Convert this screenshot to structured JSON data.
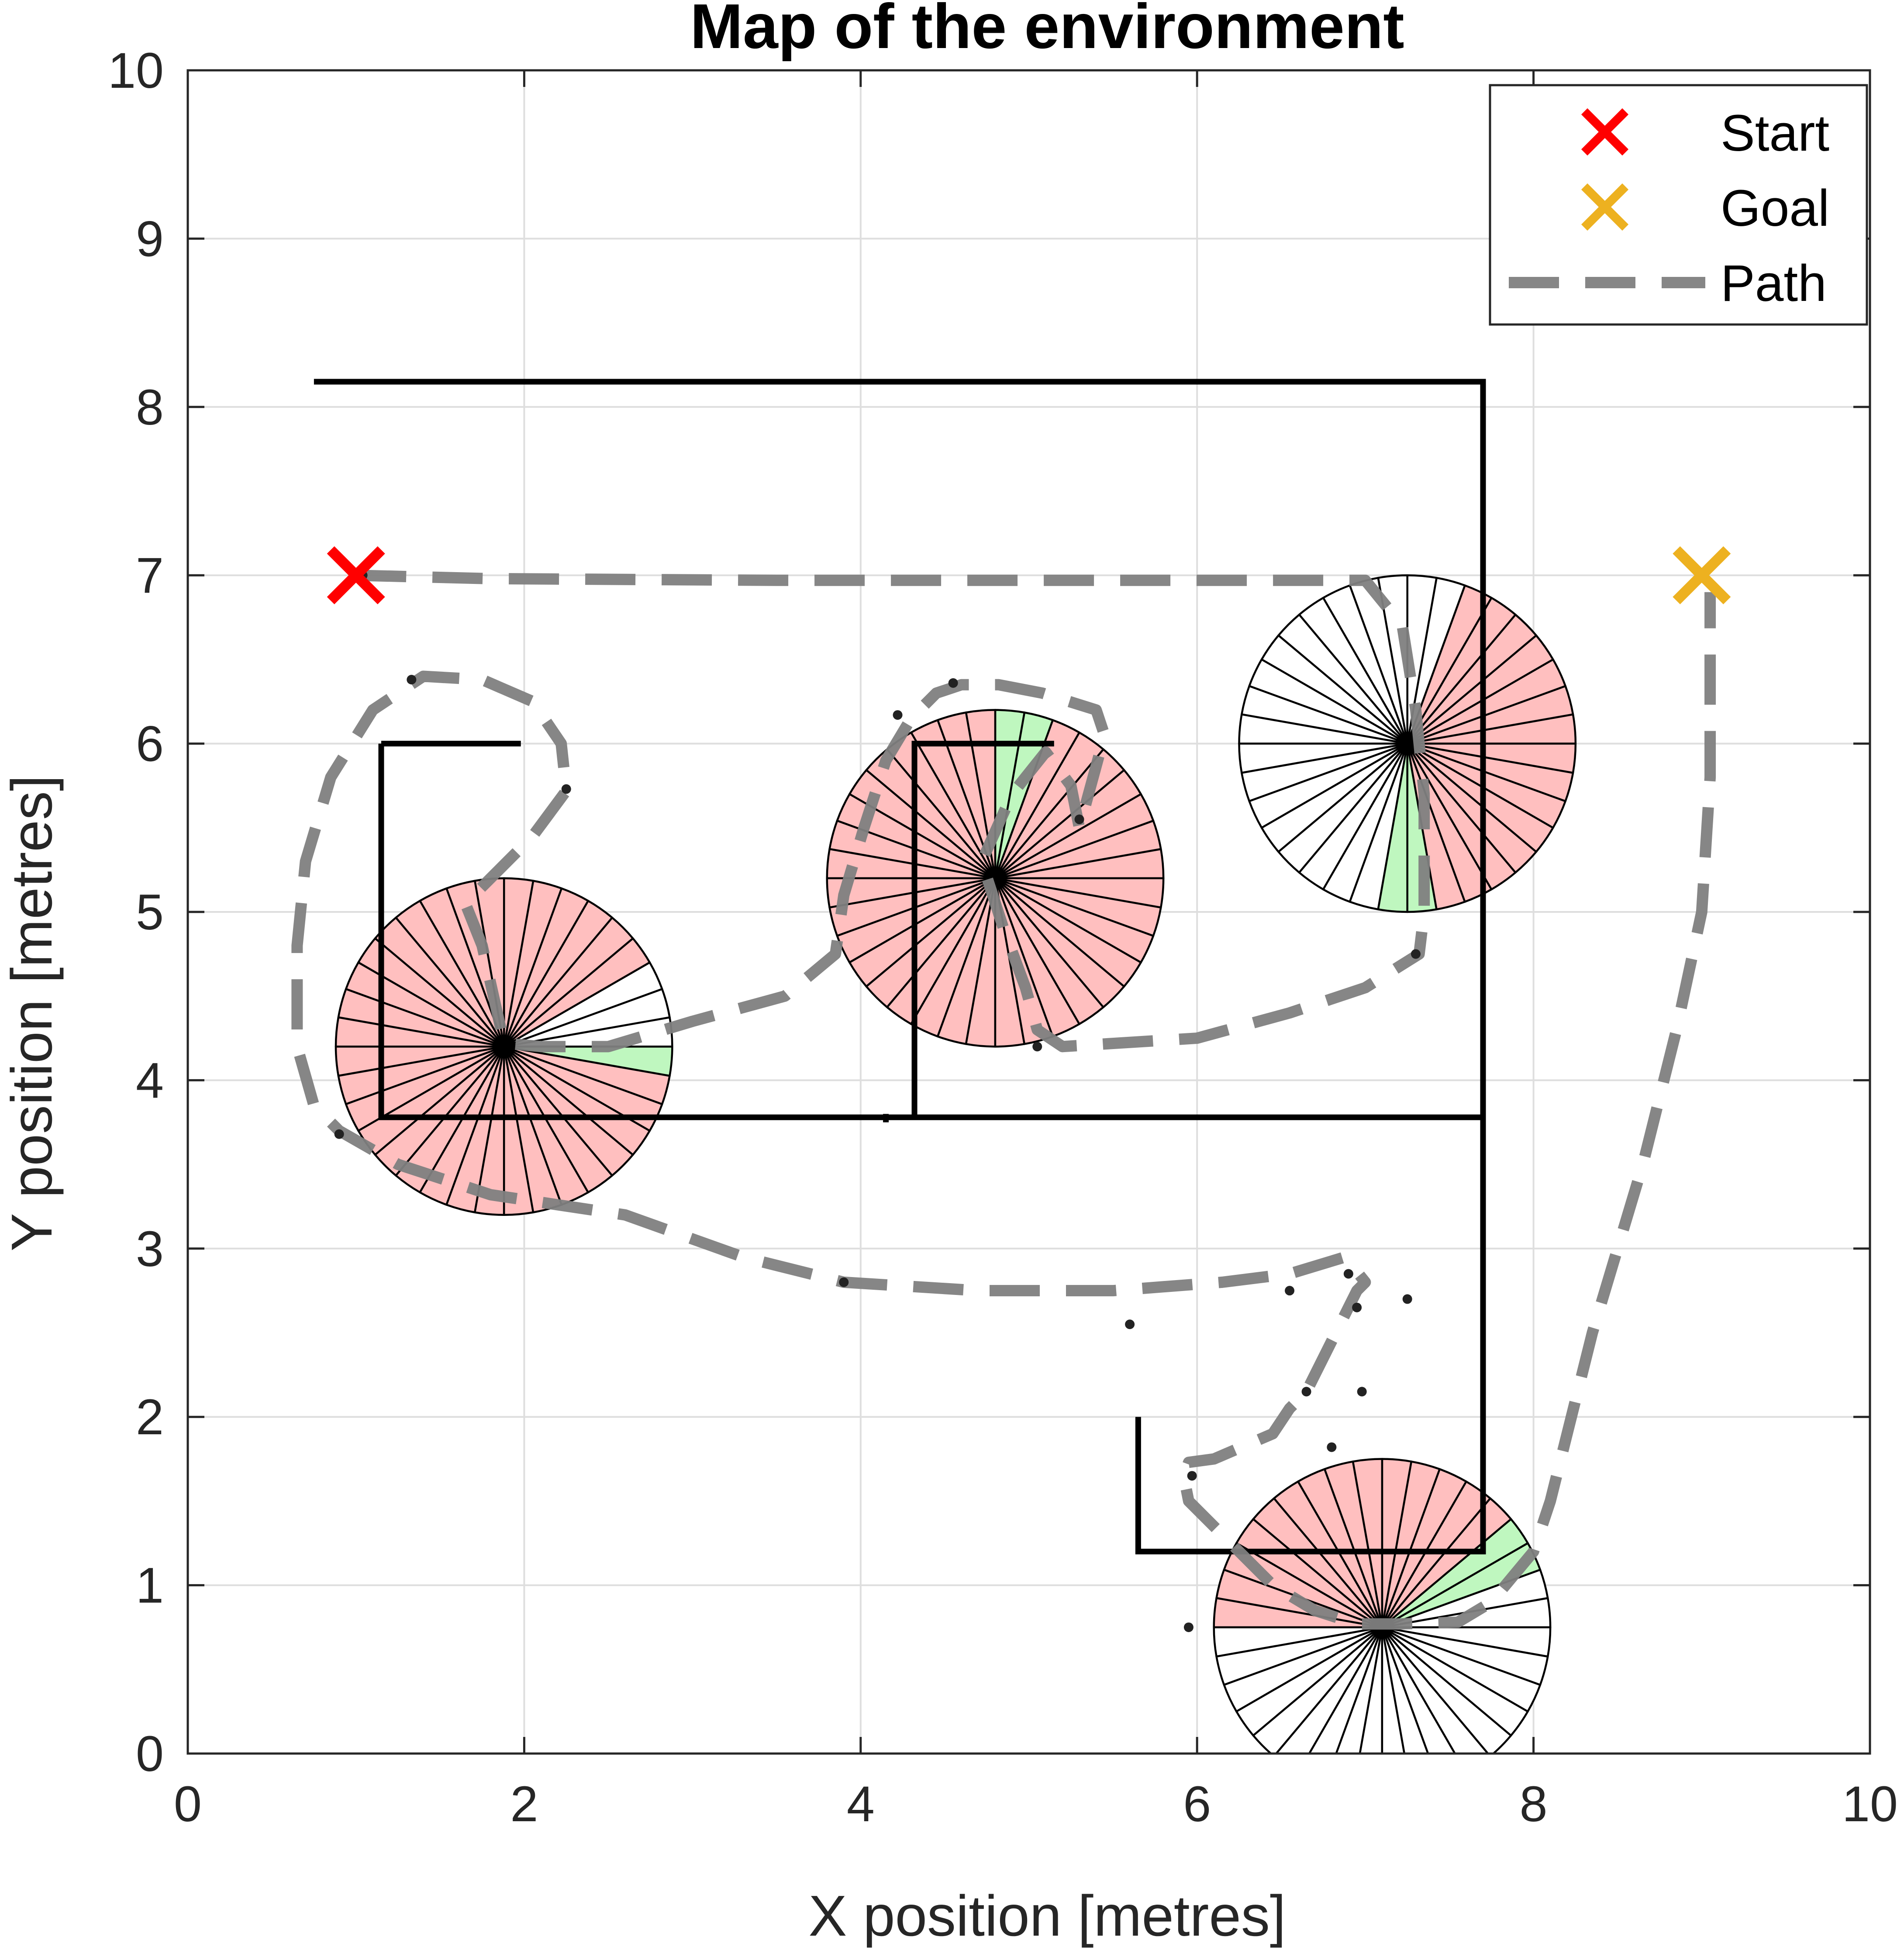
{
  "chart_data": {
    "type": "scatter",
    "title": "Map of the environment",
    "xlabel": "X position [metres]",
    "ylabel": "Y position [metres]",
    "xlim": [
      0,
      10
    ],
    "ylim": [
      0,
      10
    ],
    "xticks": [
      "0",
      "2",
      "4",
      "6",
      "8",
      "10"
    ],
    "yticks": [
      "0",
      "1",
      "2",
      "3",
      "4",
      "5",
      "6",
      "7",
      "8",
      "9",
      "10"
    ],
    "grid": true,
    "legend": {
      "placement": "top-right",
      "entries": [
        {
          "label": "Start",
          "marker": "x",
          "color": "#ff0000"
        },
        {
          "label": "Goal",
          "marker": "x",
          "color": "#edb120"
        },
        {
          "label": "Path",
          "marker": "dashed-line",
          "color": "#808080"
        }
      ]
    },
    "start": {
      "x": 1.0,
      "y": 7.0
    },
    "goal": {
      "x": 9.0,
      "y": 7.0
    },
    "walls": [
      [
        [
          0.75,
          8.15
        ],
        [
          7.7,
          8.15
        ],
        [
          7.7,
          1.2
        ],
        [
          5.65,
          1.2
        ],
        [
          5.65,
          2.0
        ]
      ],
      [
        [
          1.15,
          6.0
        ],
        [
          1.15,
          3.78
        ],
        [
          7.7,
          3.78
        ]
      ],
      [
        [
          1.15,
          6.0
        ],
        [
          1.98,
          6.0
        ]
      ],
      [
        [
          4.32,
          3.78
        ],
        [
          4.32,
          6.0
        ],
        [
          5.15,
          6.0
        ]
      ],
      [
        [
          4.15,
          3.75
        ],
        [
          4.15,
          3.8
        ]
      ]
    ],
    "path": [
      [
        1.0,
        7.0
      ],
      [
        1.8,
        6.98
      ],
      [
        3.5,
        6.97
      ],
      [
        5.5,
        6.97
      ],
      [
        7.0,
        6.97
      ],
      [
        7.22,
        6.7
      ],
      [
        7.3,
        6.2
      ],
      [
        7.35,
        5.7
      ],
      [
        7.35,
        5.0
      ],
      [
        7.32,
        4.75
      ],
      [
        7.0,
        4.55
      ],
      [
        6.55,
        4.4
      ],
      [
        6.0,
        4.25
      ],
      [
        5.2,
        4.2
      ],
      [
        5.05,
        4.3
      ],
      [
        4.98,
        4.55
      ],
      [
        4.85,
        4.9
      ],
      [
        4.72,
        5.3
      ],
      [
        4.9,
        5.7
      ],
      [
        5.1,
        5.95
      ],
      [
        5.25,
        5.75
      ],
      [
        5.3,
        5.5
      ],
      [
        5.45,
        6.05
      ],
      [
        5.4,
        6.2
      ],
      [
        5.08,
        6.3
      ],
      [
        4.82,
        6.35
      ],
      [
        4.6,
        6.35
      ],
      [
        4.45,
        6.3
      ],
      [
        4.3,
        6.15
      ],
      [
        4.15,
        5.9
      ],
      [
        4.02,
        5.5
      ],
      [
        3.9,
        5.1
      ],
      [
        3.85,
        4.75
      ],
      [
        3.55,
        4.5
      ],
      [
        3.0,
        4.35
      ],
      [
        2.5,
        4.2
      ],
      [
        2.1,
        4.2
      ],
      [
        1.88,
        4.22
      ],
      [
        1.75,
        4.8
      ],
      [
        1.65,
        5.05
      ],
      [
        1.85,
        5.25
      ],
      [
        2.05,
        5.45
      ],
      [
        2.25,
        5.72
      ],
      [
        2.22,
        6.0
      ],
      [
        2.05,
        6.25
      ],
      [
        1.75,
        6.38
      ],
      [
        1.4,
        6.4
      ],
      [
        1.1,
        6.2
      ],
      [
        0.85,
        5.8
      ],
      [
        0.7,
        5.3
      ],
      [
        0.65,
        4.8
      ],
      [
        0.65,
        4.2
      ],
      [
        0.75,
        3.85
      ],
      [
        0.9,
        3.7
      ],
      [
        1.25,
        3.5
      ],
      [
        1.8,
        3.32
      ],
      [
        2.6,
        3.2
      ],
      [
        3.3,
        2.95
      ],
      [
        3.9,
        2.8
      ],
      [
        4.7,
        2.75
      ],
      [
        5.5,
        2.75
      ],
      [
        6.15,
        2.8
      ],
      [
        6.55,
        2.85
      ],
      [
        6.88,
        2.95
      ],
      [
        7.0,
        2.8
      ],
      [
        6.95,
        2.75
      ],
      [
        6.9,
        2.65
      ],
      [
        6.8,
        2.45
      ],
      [
        6.65,
        2.15
      ],
      [
        6.55,
        2.05
      ],
      [
        6.45,
        1.9
      ],
      [
        6.1,
        1.75
      ],
      [
        5.95,
        1.73
      ],
      [
        5.92,
        1.65
      ],
      [
        5.95,
        1.5
      ],
      [
        6.2,
        1.25
      ],
      [
        6.45,
        1.0
      ],
      [
        6.7,
        0.85
      ],
      [
        6.95,
        0.77
      ],
      [
        7.2,
        0.77
      ],
      [
        7.55,
        0.78
      ],
      [
        7.75,
        0.9
      ],
      [
        8.0,
        1.2
      ],
      [
        8.1,
        1.5
      ],
      [
        8.35,
        2.5
      ],
      [
        8.65,
        3.5
      ],
      [
        8.85,
        4.3
      ],
      [
        9.0,
        5.0
      ],
      [
        9.05,
        5.8
      ],
      [
        9.05,
        6.5
      ],
      [
        9.05,
        6.9
      ]
    ],
    "path_dots": [
      [
        1.04,
        7.0
      ],
      [
        1.33,
        6.38
      ],
      [
        2.25,
        5.73
      ],
      [
        4.22,
        6.17
      ],
      [
        4.55,
        6.36
      ],
      [
        5.3,
        5.55
      ],
      [
        7.3,
        4.75
      ],
      [
        5.05,
        4.2
      ],
      [
        0.9,
        3.68
      ],
      [
        3.9,
        2.8
      ],
      [
        5.6,
        2.55
      ],
      [
        6.55,
        2.75
      ],
      [
        6.9,
        2.85
      ],
      [
        6.95,
        2.65
      ],
      [
        7.25,
        2.7
      ],
      [
        6.65,
        2.15
      ],
      [
        6.98,
        2.15
      ],
      [
        6.8,
        1.82
      ],
      [
        5.97,
        1.65
      ],
      [
        5.95,
        0.75
      ]
    ],
    "sensors": [
      {
        "cx": 1.88,
        "cy": 4.2,
        "r": 1.0,
        "sectors": [
          "clear",
          "clear",
          "clear",
          "blocked",
          "blocked",
          "blocked",
          "blocked",
          "blocked",
          "blocked",
          "blocked",
          "blocked",
          "blocked",
          "blocked",
          "blocked",
          "blocked",
          "blocked",
          "blocked",
          "blocked",
          "blocked",
          "blocked",
          "blocked",
          "blocked",
          "blocked",
          "blocked",
          "blocked",
          "blocked",
          "blocked",
          "blocked",
          "blocked",
          "blocked",
          "blocked",
          "blocked",
          "blocked",
          "blocked",
          "blocked",
          "target"
        ]
      },
      {
        "cx": 4.8,
        "cy": 5.2,
        "r": 1.0,
        "sectors": [
          "blocked",
          "blocked",
          "blocked",
          "blocked",
          "blocked",
          "blocked",
          "blocked",
          "target",
          "target",
          "blocked",
          "blocked",
          "blocked",
          "blocked",
          "blocked",
          "blocked",
          "blocked",
          "blocked",
          "blocked",
          "blocked",
          "blocked",
          "blocked",
          "blocked",
          "blocked",
          "blocked",
          "blocked",
          "blocked",
          "blocked",
          "blocked",
          "blocked",
          "blocked",
          "blocked",
          "blocked",
          "blocked",
          "blocked",
          "blocked",
          "blocked"
        ]
      },
      {
        "cx": 7.25,
        "cy": 6.0,
        "r": 1.0,
        "sectors": [
          "blocked",
          "blocked",
          "blocked",
          "blocked",
          "blocked",
          "blocked",
          "blocked",
          "clear",
          "clear",
          "clear",
          "clear",
          "clear",
          "clear",
          "clear",
          "clear",
          "clear",
          "clear",
          "clear",
          "clear",
          "clear",
          "clear",
          "clear",
          "clear",
          "clear",
          "clear",
          "clear",
          "target",
          "target",
          "blocked",
          "blocked",
          "blocked",
          "blocked",
          "blocked",
          "blocked",
          "blocked",
          "blocked"
        ]
      },
      {
        "cx": 7.1,
        "cy": 0.75,
        "r": 1.0,
        "sectors": [
          "clear",
          "clear",
          "target",
          "target",
          "blocked",
          "blocked",
          "blocked",
          "blocked",
          "blocked",
          "blocked",
          "blocked",
          "blocked",
          "blocked",
          "blocked",
          "blocked",
          "blocked",
          "blocked",
          "blocked",
          "clear",
          "clear",
          "clear",
          "clear",
          "clear",
          "clear",
          "clear",
          "clear",
          "clear",
          "clear",
          "clear",
          "clear",
          "clear",
          "clear",
          "clear",
          "clear",
          "clear",
          "clear"
        ]
      }
    ],
    "colors": {
      "blocked": "#ffbfbf",
      "target": "#bff7bf",
      "clear": "#ffffff",
      "wall": "#000000",
      "path": "#808080",
      "grid": "#dedede",
      "axis": "#262626"
    }
  }
}
